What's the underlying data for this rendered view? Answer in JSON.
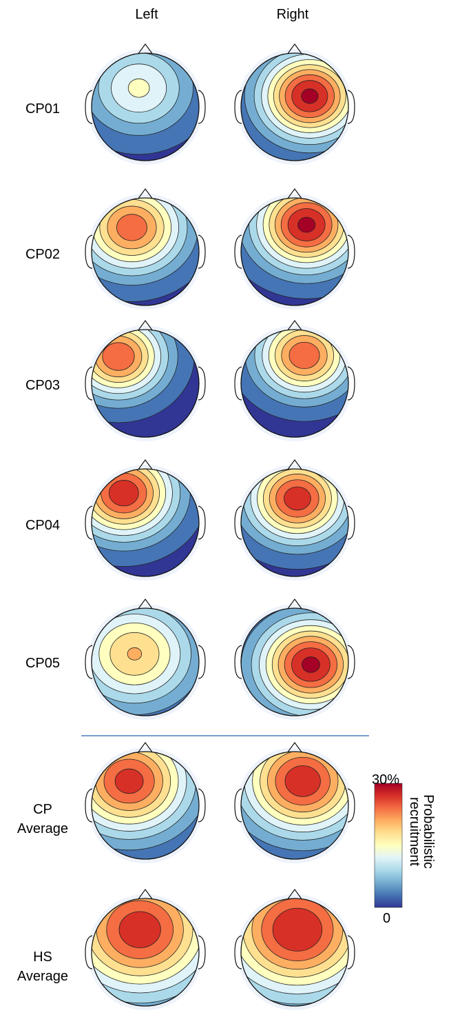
{
  "columns": [
    "Left",
    "Right"
  ],
  "rows": [
    {
      "id": "cp01",
      "label_lines": [
        "CP01"
      ],
      "maps": [
        {
          "peak": 0.47,
          "fx": -0.12,
          "fy": -0.35,
          "sigma": 0.62
        },
        {
          "peak": 0.98,
          "fx": 0.28,
          "fy": -0.2,
          "sigma": 0.58
        }
      ]
    },
    {
      "id": "cp02",
      "label_lines": [
        "CP02"
      ],
      "maps": [
        {
          "peak": 0.82,
          "fx": -0.25,
          "fy": -0.45,
          "sigma": 0.62
        },
        {
          "peak": 0.98,
          "fx": 0.22,
          "fy": -0.5,
          "sigma": 0.6
        }
      ]
    },
    {
      "id": "cp03",
      "label_lines": [
        "CP03"
      ],
      "maps": [
        {
          "peak": 0.85,
          "fx": -0.5,
          "fy": -0.5,
          "sigma": 0.55
        },
        {
          "peak": 0.84,
          "fx": 0.18,
          "fy": -0.52,
          "sigma": 0.55
        }
      ]
    },
    {
      "id": "cp04",
      "label_lines": [
        "CP04"
      ],
      "maps": [
        {
          "peak": 0.93,
          "fx": -0.4,
          "fy": -0.55,
          "sigma": 0.6
        },
        {
          "peak": 0.92,
          "fx": 0.05,
          "fy": -0.45,
          "sigma": 0.58
        }
      ]
    },
    {
      "id": "cp05",
      "label_lines": [
        "CP05"
      ],
      "maps": [
        {
          "peak": 0.66,
          "fx": -0.2,
          "fy": -0.15,
          "sigma": 0.7
        },
        {
          "peak": 0.98,
          "fx": 0.3,
          "fy": 0.05,
          "sigma": 0.62
        }
      ]
    },
    {
      "id": "cp-average",
      "label_lines": [
        "CP",
        "Average"
      ],
      "maps": [
        {
          "peak": 0.9,
          "fx": -0.3,
          "fy": -0.45,
          "sigma": 0.72
        },
        {
          "peak": 0.93,
          "fx": 0.15,
          "fy": -0.45,
          "sigma": 0.72
        }
      ]
    },
    {
      "id": "hs-average",
      "label_lines": [
        "HS",
        "Average"
      ],
      "maps": [
        {
          "peak": 0.92,
          "fx": -0.1,
          "fy": -0.42,
          "sigma": 0.9
        },
        {
          "peak": 0.95,
          "fx": 0.05,
          "fy": -0.42,
          "sigma": 0.9
        }
      ]
    }
  ],
  "colorbar": {
    "max_label": "30%",
    "min_label": "0",
    "title_lines": [
      "Probabilistic",
      "recruitment"
    ]
  },
  "palette": [
    "#313695",
    "#4575b4",
    "#74add1",
    "#abd9e9",
    "#e0f3f8",
    "#ffffbf",
    "#fee090",
    "#fdae61",
    "#f46d43",
    "#d73027",
    "#a50026"
  ],
  "divider_color": "#4a7fbf"
}
